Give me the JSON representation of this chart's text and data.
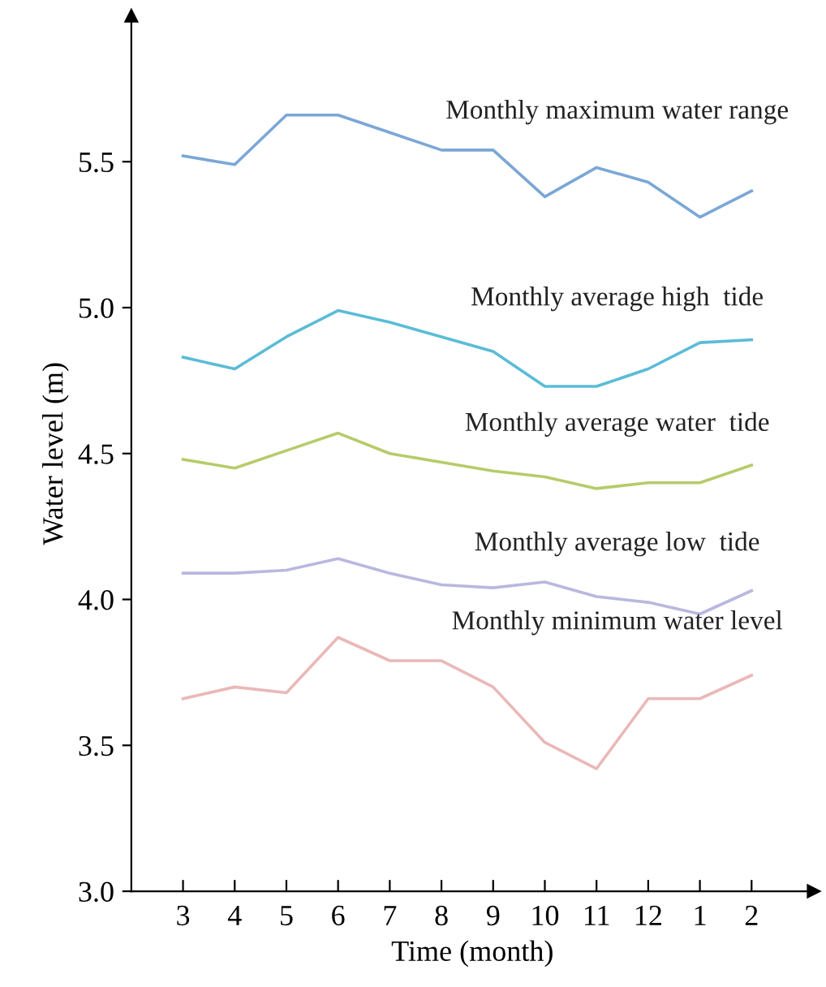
{
  "chart_data": {
    "type": "line",
    "xlabel": "Time (month)",
    "ylabel": "Water level (m)",
    "categories": [
      "3",
      "4",
      "5",
      "6",
      "7",
      "8",
      "9",
      "10",
      "11",
      "12",
      "1",
      "2"
    ],
    "ylim": [
      3.0,
      6.0
    ],
    "yticks": [
      {
        "value": 3.0,
        "label": "3.0"
      },
      3.5,
      {
        "value": 4.0,
        "label": "4.0"
      },
      4.5,
      {
        "value": 5.0,
        "label": "5.0"
      },
      5.5
    ],
    "grid": false,
    "legend": false,
    "marker": "none",
    "line_style": "solid",
    "series": [
      {
        "name": "Monthly maximum water range",
        "color": "#7ba7d6",
        "values": [
          5.52,
          5.49,
          5.66,
          5.66,
          5.6,
          5.54,
          5.54,
          5.38,
          5.48,
          5.43,
          5.31,
          5.4
        ]
      },
      {
        "name": "Monthly average high  tide",
        "color": "#5bbcd6",
        "values": [
          4.83,
          4.79,
          4.9,
          4.99,
          4.95,
          4.9,
          4.85,
          4.73,
          4.73,
          4.79,
          4.88,
          4.89
        ]
      },
      {
        "name": "Monthly average water  tide",
        "color": "#b5cc6a",
        "values": [
          4.48,
          4.45,
          4.51,
          4.57,
          4.5,
          4.47,
          4.44,
          4.42,
          4.38,
          4.4,
          4.4,
          4.46
        ]
      },
      {
        "name": "Monthly average low  tide",
        "color": "#b8b8e0",
        "values": [
          4.09,
          4.09,
          4.1,
          4.14,
          4.09,
          4.05,
          4.04,
          4.06,
          4.01,
          3.99,
          3.95,
          4.03
        ]
      },
      {
        "name": "Monthly minimum water level",
        "color": "#eab8b8",
        "values": [
          3.66,
          3.7,
          3.68,
          3.87,
          3.79,
          3.79,
          3.7,
          3.51,
          3.42,
          3.66,
          3.66,
          3.74
        ]
      }
    ]
  }
}
